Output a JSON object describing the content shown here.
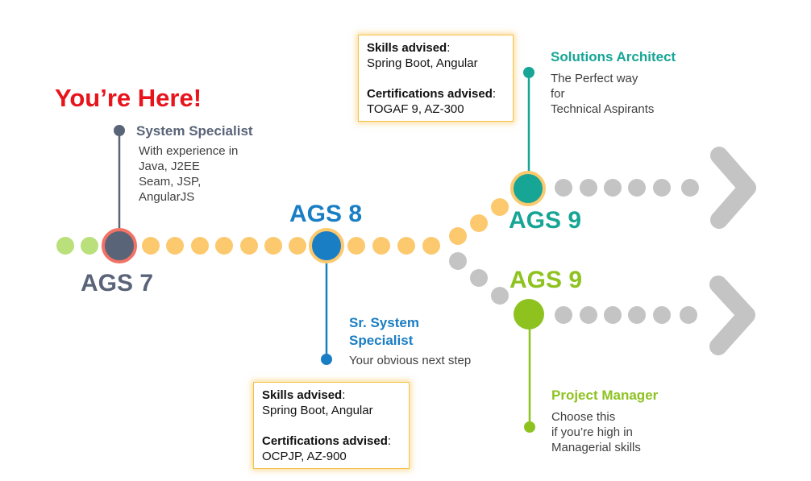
{
  "header": {
    "you_are_here": "You’re Here!"
  },
  "levels": {
    "ags7": "AGS 7",
    "ags8": "AGS 8",
    "ags9_architect": "AGS 9",
    "ags9_manager": "AGS 9"
  },
  "roles": {
    "system_specialist": {
      "title": "System Specialist",
      "lines": [
        "With experience in",
        "Java, J2EE",
        "Seam, JSP,",
        "AngularJS"
      ]
    },
    "sr_system_specialist": {
      "title_line1": "Sr. System",
      "title_line2": "Specialist",
      "desc": "Your obvious next step"
    },
    "solutions_architect": {
      "title": "Solutions Architect",
      "lines": [
        "The Perfect way",
        "for",
        "Technical Aspirants"
      ]
    },
    "project_manager": {
      "title": "Project Manager",
      "lines": [
        "Choose this",
        "if you’re high in",
        "Managerial skills"
      ]
    }
  },
  "advice_boxes": {
    "architect": {
      "skills_label": "Skills advised",
      "skills": "Spring Boot, Angular",
      "certs_label": "Certifications advised",
      "certs": "TOGAF 9, AZ-300"
    },
    "sr_specialist": {
      "skills_label": "Skills advised",
      "skills": "Spring Boot, Angular",
      "certs_label": "Certifications advised",
      "certs": "OCPJP, AZ-900"
    }
  },
  "colors": {
    "red": "#e8141c",
    "slate": "#5a6478",
    "blue": "#1a7ec4",
    "teal": "#17a595",
    "green": "#8dc21f",
    "yellow_dot": "#fcc96e",
    "grey_dot": "#c4c4c4",
    "light_green_dot": "#b9e07a"
  }
}
